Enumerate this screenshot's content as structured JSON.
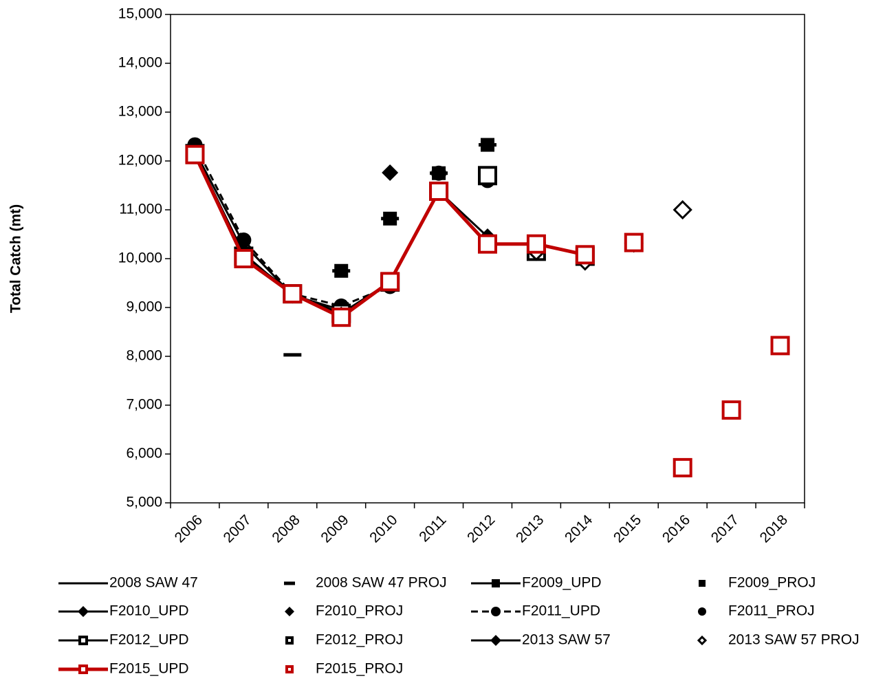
{
  "chart_data": {
    "type": "line",
    "y_label": "Total Catch (mt)",
    "categories": [
      "2006",
      "2007",
      "2008",
      "2009",
      "2010",
      "2011",
      "2012",
      "2013",
      "2014",
      "2015",
      "2016",
      "2017",
      "2018"
    ],
    "ylim": [
      5000,
      15000
    ],
    "yticks": [
      {
        "value": 5000,
        "label": "5,000"
      },
      {
        "value": 6000,
        "label": "6,000"
      },
      {
        "value": 7000,
        "label": "7,000"
      },
      {
        "value": 8000,
        "label": "8,000"
      },
      {
        "value": 9000,
        "label": "9,000"
      },
      {
        "value": 10000,
        "label": "10,000"
      },
      {
        "value": 11000,
        "label": "11,000"
      },
      {
        "value": 12000,
        "label": "12,000"
      },
      {
        "value": 13000,
        "label": "13,000"
      },
      {
        "value": 14000,
        "label": "14,000"
      },
      {
        "value": 15000,
        "label": "15,000"
      }
    ],
    "series": [
      {
        "name": "2008 SAW 47",
        "color": "#000000",
        "line": "solid",
        "marker": "none",
        "values": [
          12200,
          10300,
          9250,
          null,
          null,
          null,
          null,
          null,
          null,
          null,
          null,
          null,
          null
        ]
      },
      {
        "name": "2008 SAW 47 PROJ",
        "color": "#000000",
        "line": "none",
        "marker": "dash",
        "values": [
          null,
          null,
          8030,
          9750,
          10820,
          11750,
          12330,
          null,
          null,
          null,
          null,
          null,
          null
        ]
      },
      {
        "name": "F2009_UPD",
        "color": "#000000",
        "line": "solid",
        "marker": "square",
        "values": [
          12150,
          10050,
          9300,
          null,
          null,
          null,
          null,
          null,
          null,
          null,
          null,
          null,
          null
        ]
      },
      {
        "name": "F2009_PROJ",
        "color": "#000000",
        "line": "none",
        "marker": "square",
        "values": [
          null,
          null,
          null,
          9750,
          10820,
          11750,
          12330,
          null,
          null,
          null,
          null,
          null,
          null
        ]
      },
      {
        "name": "F2010_UPD",
        "color": "#000000",
        "line": "solid",
        "marker": "diamond",
        "values": [
          12150,
          10100,
          9250,
          8950,
          null,
          null,
          null,
          null,
          null,
          null,
          null,
          null,
          null
        ]
      },
      {
        "name": "F2010_PROJ",
        "color": "#000000",
        "line": "none",
        "marker": "diamond",
        "values": [
          null,
          null,
          null,
          null,
          11760,
          null,
          11700,
          null,
          null,
          null,
          null,
          null,
          null
        ]
      },
      {
        "name": "F2011_UPD",
        "color": "#000000",
        "line": "dashed",
        "marker": "circle",
        "values": [
          12330,
          10380,
          9280,
          9030,
          9430,
          null,
          null,
          null,
          null,
          null,
          null,
          null,
          null
        ]
      },
      {
        "name": "F2011_PROJ",
        "color": "#000000",
        "line": "none",
        "marker": "circle",
        "values": [
          null,
          null,
          null,
          null,
          null,
          11750,
          11600,
          10150,
          null,
          null,
          null,
          null,
          null
        ]
      },
      {
        "name": "F2012_UPD",
        "color": "#000000",
        "line": "solid",
        "marker": "hollow-square",
        "values": [
          12150,
          10050,
          9280,
          8880,
          9520,
          11380,
          null,
          null,
          null,
          null,
          null,
          null,
          null
        ]
      },
      {
        "name": "F2012_PROJ",
        "color": "#000000",
        "line": "none",
        "marker": "hollow-square",
        "values": [
          null,
          null,
          null,
          null,
          null,
          null,
          11700,
          10150,
          10050,
          null,
          null,
          null,
          null
        ]
      },
      {
        "name": "2013 SAW 57",
        "color": "#000000",
        "line": "solid",
        "marker": "diamond",
        "values": [
          12150,
          10050,
          9250,
          8850,
          9500,
          11380,
          10450,
          null,
          null,
          null,
          null,
          null,
          null
        ]
      },
      {
        "name": "2013 SAW 57 PROJ",
        "color": "#000000",
        "line": "none",
        "marker": "hollow-diamond",
        "values": [
          null,
          null,
          null,
          null,
          null,
          null,
          null,
          10150,
          9950,
          10320,
          11000,
          null,
          null
        ]
      },
      {
        "name": "F2015_UPD",
        "color": "#c00000",
        "line": "solid",
        "marker": "hollow-square",
        "values": [
          12130,
          10000,
          9280,
          8800,
          9530,
          11380,
          10300,
          10300,
          10080,
          null,
          null,
          null,
          null
        ]
      },
      {
        "name": "F2015_PROJ",
        "color": "#c00000",
        "line": "none",
        "marker": "hollow-square",
        "values": [
          null,
          null,
          null,
          null,
          null,
          null,
          null,
          null,
          null,
          10330,
          5720,
          6900,
          8220
        ]
      }
    ]
  }
}
